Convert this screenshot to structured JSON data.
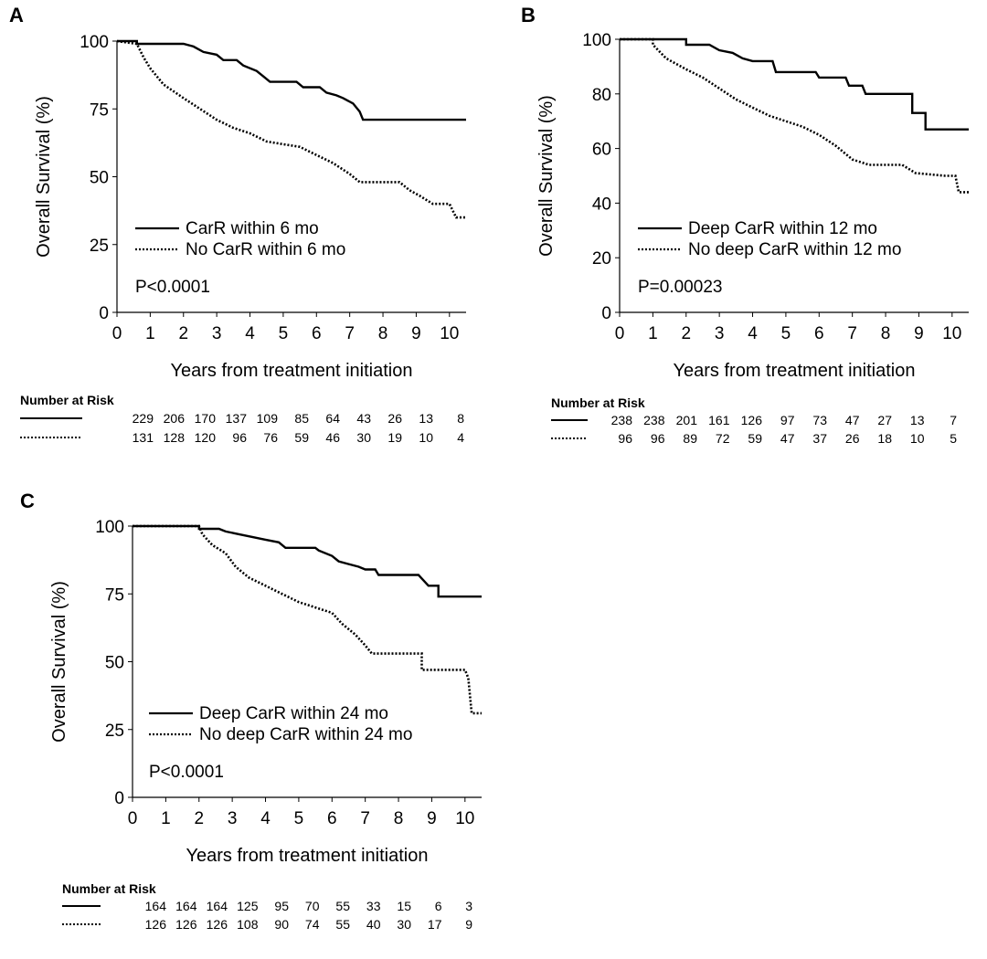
{
  "chart_data": [
    {
      "panel": "A",
      "type": "line",
      "xlabel": "Years from treatment initiation",
      "ylabel": "Overall Survival (%)",
      "xlim": [
        0,
        10.5
      ],
      "ylim": [
        0,
        100
      ],
      "x_ticks": [
        0,
        1,
        2,
        3,
        4,
        5,
        6,
        7,
        8,
        9,
        10
      ],
      "y_ticks": [
        0,
        25,
        50,
        75,
        100
      ],
      "grid": false,
      "legend_position": "bottom-left",
      "pvalue": "P<0.0001",
      "series": [
        {
          "name": "CarR within 6 mo",
          "style": "solid",
          "points": [
            [
              0,
              100
            ],
            [
              0.6,
              100
            ],
            [
              0.6,
              99
            ],
            [
              2,
              99
            ],
            [
              2.3,
              98
            ],
            [
              2.6,
              96
            ],
            [
              3,
              95
            ],
            [
              3.2,
              93
            ],
            [
              3.6,
              93
            ],
            [
              3.8,
              91
            ],
            [
              4.2,
              89
            ],
            [
              4.4,
              87
            ],
            [
              4.6,
              85
            ],
            [
              5.4,
              85
            ],
            [
              5.6,
              83
            ],
            [
              6.1,
              83
            ],
            [
              6.3,
              81
            ],
            [
              6.6,
              80
            ],
            [
              6.8,
              79
            ],
            [
              7.1,
              77
            ],
            [
              7.3,
              74
            ],
            [
              7.4,
              71
            ],
            [
              10.5,
              71
            ]
          ]
        },
        {
          "name": "No CarR within 6 mo",
          "style": "dotted",
          "points": [
            [
              0,
              100
            ],
            [
              0.6,
              99
            ],
            [
              0.8,
              94
            ],
            [
              1,
              90
            ],
            [
              1.4,
              84
            ],
            [
              2,
              79
            ],
            [
              2.5,
              75
            ],
            [
              3,
              71
            ],
            [
              3.5,
              68
            ],
            [
              4,
              66
            ],
            [
              4.5,
              63
            ],
            [
              5,
              62
            ],
            [
              5.5,
              61
            ],
            [
              6,
              58
            ],
            [
              6.5,
              55
            ],
            [
              7,
              51
            ],
            [
              7.3,
              48
            ],
            [
              8.5,
              48
            ],
            [
              8.8,
              45
            ],
            [
              9.1,
              43
            ],
            [
              9.5,
              40
            ],
            [
              10,
              40
            ],
            [
              10.2,
              35
            ],
            [
              10.5,
              35
            ]
          ]
        }
      ],
      "risk_table": {
        "title": "Number at Risk",
        "rows": [
          {
            "style": "solid",
            "values": [
              "229",
              "206",
              "170",
              "137",
              "109",
              "85",
              "64",
              "43",
              "26",
              "13",
              "8"
            ]
          },
          {
            "style": "dotted",
            "values": [
              "131",
              "128",
              "120",
              "96",
              "76",
              "59",
              "46",
              "30",
              "19",
              "10",
              "4"
            ]
          }
        ]
      }
    },
    {
      "panel": "B",
      "type": "line",
      "xlabel": "Years from treatment initiation",
      "ylabel": "Overall Survival (%)",
      "xlim": [
        0,
        10.5
      ],
      "ylim": [
        0,
        100
      ],
      "x_ticks": [
        0,
        1,
        2,
        3,
        4,
        5,
        6,
        7,
        8,
        9,
        10
      ],
      "y_ticks": [
        0,
        20,
        40,
        60,
        80,
        100
      ],
      "grid": false,
      "legend_position": "bottom-left",
      "pvalue": "P=0.00023",
      "series": [
        {
          "name": "Deep CarR within 12 mo",
          "style": "solid",
          "points": [
            [
              0,
              100
            ],
            [
              2,
              100
            ],
            [
              2,
              98
            ],
            [
              2.7,
              98
            ],
            [
              3,
              96
            ],
            [
              3.4,
              95
            ],
            [
              3.7,
              93
            ],
            [
              4,
              92
            ],
            [
              4.6,
              92
            ],
            [
              4.7,
              88
            ],
            [
              5.9,
              88
            ],
            [
              6,
              86
            ],
            [
              6.8,
              86
            ],
            [
              6.9,
              83
            ],
            [
              7.3,
              83
            ],
            [
              7.4,
              80
            ],
            [
              8.8,
              80
            ],
            [
              8.8,
              73
            ],
            [
              9.2,
              73
            ],
            [
              9.2,
              67
            ],
            [
              10.5,
              67
            ]
          ]
        },
        {
          "name": "No deep CarR within 12 mo",
          "style": "dotted",
          "points": [
            [
              0,
              100
            ],
            [
              1,
              100
            ],
            [
              1,
              98
            ],
            [
              1.4,
              93
            ],
            [
              2,
              89
            ],
            [
              2.5,
              86
            ],
            [
              3,
              82
            ],
            [
              3.5,
              78
            ],
            [
              4,
              75
            ],
            [
              4.5,
              72
            ],
            [
              5,
              70
            ],
            [
              5.5,
              68
            ],
            [
              6,
              65
            ],
            [
              6.5,
              61
            ],
            [
              7,
              56
            ],
            [
              7.5,
              54
            ],
            [
              8,
              54
            ],
            [
              8.5,
              54
            ],
            [
              8.9,
              51
            ],
            [
              9.8,
              50
            ],
            [
              10.1,
              50
            ],
            [
              10.2,
              44
            ],
            [
              10.5,
              44
            ]
          ]
        }
      ],
      "risk_table": {
        "title": "Number at Risk",
        "rows": [
          {
            "style": "solid",
            "values": [
              "238",
              "238",
              "201",
              "161",
              "126",
              "97",
              "73",
              "47",
              "27",
              "13",
              "7"
            ]
          },
          {
            "style": "dotted",
            "values": [
              "96",
              "96",
              "89",
              "72",
              "59",
              "47",
              "37",
              "26",
              "18",
              "10",
              "5"
            ]
          }
        ]
      }
    },
    {
      "panel": "C",
      "type": "line",
      "xlabel": "Years from treatment initiation",
      "ylabel": "Overall Survival (%)",
      "xlim": [
        0,
        10.5
      ],
      "ylim": [
        0,
        100
      ],
      "x_ticks": [
        0,
        1,
        2,
        3,
        4,
        5,
        6,
        7,
        8,
        9,
        10
      ],
      "y_ticks": [
        0,
        25,
        50,
        75,
        100
      ],
      "grid": false,
      "legend_position": "bottom-left",
      "pvalue": "P<0.0001",
      "series": [
        {
          "name": "Deep CarR within 24 mo",
          "style": "solid",
          "points": [
            [
              0,
              100
            ],
            [
              2,
              100
            ],
            [
              2,
              99
            ],
            [
              2.6,
              99
            ],
            [
              2.8,
              98
            ],
            [
              3.2,
              97
            ],
            [
              3.6,
              96
            ],
            [
              4,
              95
            ],
            [
              4.4,
              94
            ],
            [
              4.6,
              92
            ],
            [
              5.5,
              92
            ],
            [
              5.6,
              91
            ],
            [
              6,
              89
            ],
            [
              6.2,
              87
            ],
            [
              6.5,
              86
            ],
            [
              6.8,
              85
            ],
            [
              7,
              84
            ],
            [
              7.3,
              84
            ],
            [
              7.4,
              82
            ],
            [
              8.6,
              82
            ],
            [
              8.9,
              78
            ],
            [
              9.2,
              78
            ],
            [
              9.2,
              74
            ],
            [
              10.5,
              74
            ]
          ]
        },
        {
          "name": "No deep CarR within 24 mo",
          "style": "dotted",
          "points": [
            [
              0,
              100
            ],
            [
              2,
              100
            ],
            [
              2.1,
              97
            ],
            [
              2.4,
              93
            ],
            [
              2.8,
              90
            ],
            [
              3.1,
              85
            ],
            [
              3.5,
              81
            ],
            [
              4,
              78
            ],
            [
              4.5,
              75
            ],
            [
              5,
              72
            ],
            [
              5.5,
              70
            ],
            [
              6,
              68
            ],
            [
              6.3,
              64
            ],
            [
              6.7,
              60
            ],
            [
              7,
              56
            ],
            [
              7.2,
              53
            ],
            [
              8.7,
              53
            ],
            [
              8.7,
              47
            ],
            [
              10,
              47
            ],
            [
              10.1,
              44
            ],
            [
              10.2,
              31
            ],
            [
              10.5,
              31
            ]
          ]
        }
      ],
      "risk_table": {
        "title": "Number at Risk",
        "rows": [
          {
            "style": "solid",
            "values": [
              "164",
              "164",
              "164",
              "125",
              "95",
              "70",
              "55",
              "33",
              "15",
              "6",
              "3"
            ]
          },
          {
            "style": "dotted",
            "values": [
              "126",
              "126",
              "126",
              "108",
              "90",
              "74",
              "55",
              "40",
              "30",
              "17",
              "9"
            ]
          }
        ]
      }
    }
  ]
}
